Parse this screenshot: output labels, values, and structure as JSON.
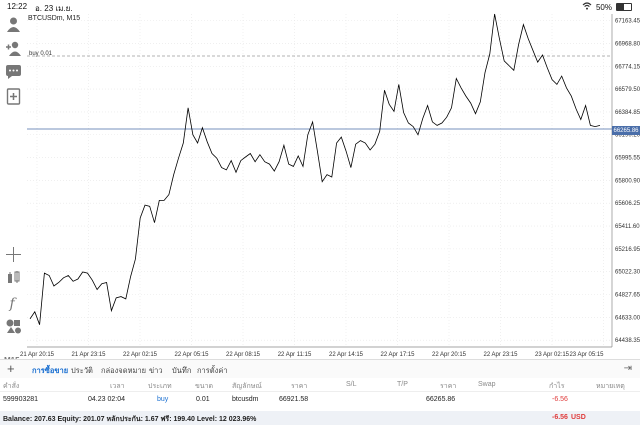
{
  "status": {
    "time": "12:22",
    "date": "อ. 23 เม.ย.",
    "battery": "50%"
  },
  "chart": {
    "symbol_label": "BTCUSDm, M15",
    "order_line_label": "buy 0.01",
    "current_price": "66265.86",
    "timeframe": "M15",
    "colors": {
      "line": "#000000",
      "grid": "#d0d0d0",
      "bid_line": "#4a6ea9",
      "order_line": "#9a9a9a"
    }
  },
  "chart_data": {
    "type": "line",
    "y_ticks": [
      "67163.45",
      "66968.80",
      "66774.15",
      "66579.50",
      "66384.85",
      "66190.20",
      "65995.55",
      "65800.90",
      "65606.25",
      "65411.60",
      "65216.95",
      "65022.30",
      "64827.65",
      "64633.00",
      "64438.35"
    ],
    "x_ticks": [
      "21 Apr 20:15",
      "21 Apr 23:15",
      "22 Apr 02:15",
      "22 Apr 05:15",
      "22 Apr 08:15",
      "22 Apr 11:15",
      "22 Apr 14:15",
      "22 Apr 17:15",
      "22 Apr 20:15",
      "22 Apr 23:15",
      "23 Apr 02:15",
      "23 Apr 05:15"
    ],
    "ylim": [
      64380,
      67220
    ],
    "series": [
      {
        "values": [
          64620,
          64680,
          64570,
          65010,
          64990,
          64900,
          64930,
          64970,
          64990,
          64940,
          64960,
          65020,
          65010,
          64950,
          64870,
          64920,
          64930,
          64690,
          64800,
          64810,
          64790,
          64980,
          65130,
          65480,
          65590,
          65580,
          65440,
          65630,
          65630,
          65680,
          65850,
          65990,
          66120,
          66420,
          66190,
          66120,
          66250,
          66130,
          66030,
          65990,
          65910,
          65890,
          65970,
          65870,
          65970,
          66000,
          66030,
          65960,
          66020,
          65960,
          65940,
          65880,
          65960,
          66100,
          65940,
          65920,
          66010,
          65920,
          66190,
          66300,
          66050,
          65790,
          65850,
          65830,
          66120,
          66170,
          66050,
          65910,
          66110,
          66140,
          66120,
          66060,
          66110,
          66220,
          66570,
          66450,
          66390,
          66620,
          66380,
          66290,
          66260,
          66190,
          66330,
          66440,
          66300,
          66270,
          66290,
          66340,
          66420,
          66670,
          66590,
          66520,
          66460,
          66370,
          66470,
          66720,
          66880,
          67220,
          67010,
          66820,
          66780,
          66740,
          66960,
          67130,
          67010,
          66910,
          66810,
          66870,
          66760,
          66660,
          66620,
          66690,
          66590,
          66520,
          66410,
          66320,
          66440,
          66270,
          66260,
          66270
        ]
      }
    ]
  },
  "toolbar_icons": [
    "person-icon",
    "add-person-icon",
    "chat-icon",
    "new-order-icon",
    "crosshair-icon",
    "indicators-icon",
    "function-icon",
    "objects-icon"
  ],
  "tabs": [
    {
      "label": "การซื้อขาย",
      "active": true
    },
    {
      "label": "ประวัติ",
      "active": false
    },
    {
      "label": "กล่องจดหมาย",
      "active": false
    },
    {
      "label": "ข่าว",
      "active": false
    },
    {
      "label": "บันทึก",
      "active": false
    },
    {
      "label": "การตั้งค่า",
      "active": false
    }
  ],
  "table": {
    "headers": [
      "คำสั่ง",
      "เวลา",
      "ประเภท",
      "ขนาด",
      "สัญลักษณ์",
      "ราคา",
      "S/L",
      "T/P",
      "ราคา",
      "Swap",
      "กำไร",
      "หมายเหตุ"
    ],
    "row": {
      "order": "599903281",
      "time": "04.23 02:04",
      "type": "buy",
      "volume": "0.01",
      "symbol": "btcusdm",
      "open_price": "66921.58",
      "sl": "",
      "tp": "",
      "price": "66265.86",
      "swap": "",
      "profit": "-6.56",
      "comment": ""
    }
  },
  "balance": {
    "summary": "Balance: 207.63 Equity: 201.07 หลักประกัน: 1.67 ฟรี: 199.40 Level: 12 023.96%",
    "profit": "-6.56",
    "currency": "USD"
  }
}
